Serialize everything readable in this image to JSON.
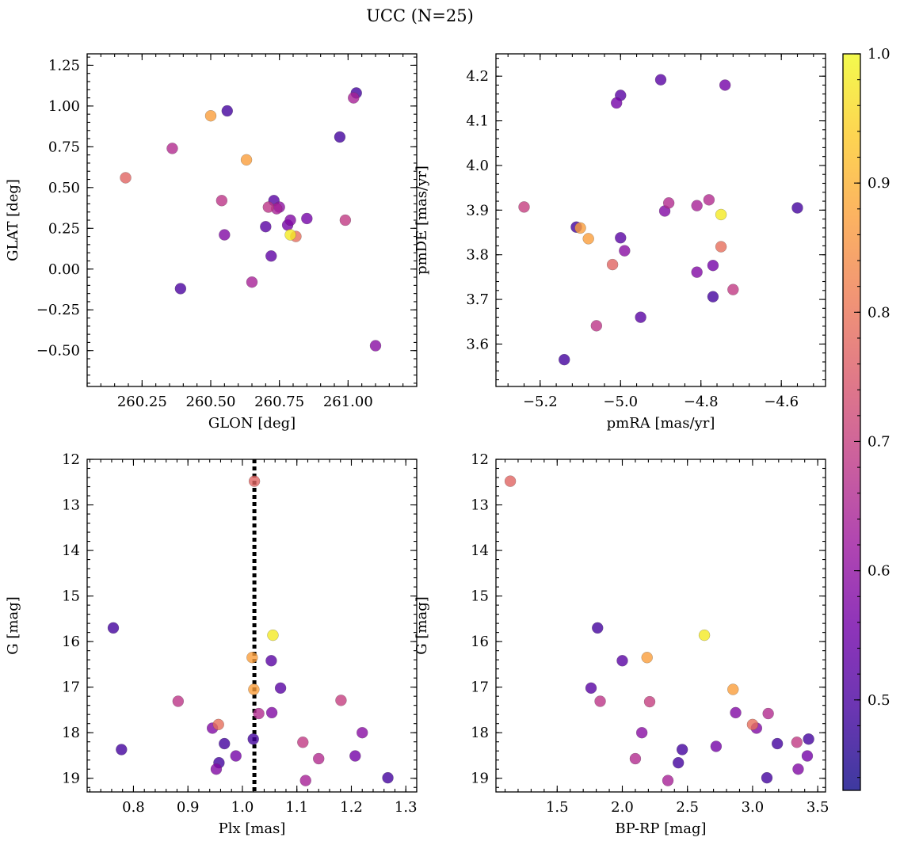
{
  "figure": {
    "title": "UCC (N=25)",
    "colorbar": {
      "range": [
        0.43,
        1.0
      ],
      "ticks": [
        0.5,
        0.6,
        0.7,
        0.8,
        0.9,
        1.0
      ],
      "tick_labels": [
        "0.5",
        "0.6",
        "0.7",
        "0.8",
        "0.9",
        "1.0"
      ],
      "colormap": "plasma",
      "colormap_stops": [
        "#0d0887",
        "#46039f",
        "#7201a8",
        "#9c179e",
        "#bd3786",
        "#d8576b",
        "#ed7953",
        "#fb9f3a",
        "#fdca26",
        "#f0f921"
      ]
    },
    "marker_alpha": 0.8
  },
  "chart_data": [
    {
      "type": "scatter",
      "xlabel": "GLON [deg]",
      "ylabel": "GLAT [deg]",
      "xlim": [
        260.05,
        261.25
      ],
      "ylim": [
        -0.72,
        1.32
      ],
      "xticks": [
        260.25,
        260.5,
        260.75,
        261.0
      ],
      "xtick_labels": [
        "260.25",
        "260.50",
        "260.75",
        "261.00"
      ],
      "yticks": [
        -0.5,
        -0.25,
        0.0,
        0.25,
        0.5,
        0.75,
        1.0,
        1.25
      ],
      "ytick_labels": [
        "−0.50",
        "−0.25",
        "0.00",
        "0.25",
        "0.50",
        "0.75",
        "1.00",
        "1.25"
      ],
      "x": [
        260.19,
        260.36,
        260.39,
        260.5,
        260.54,
        260.55,
        260.56,
        260.63,
        260.65,
        260.7,
        260.71,
        260.72,
        260.73,
        260.75,
        260.78,
        260.79,
        260.79,
        260.81,
        260.85,
        260.97,
        260.99,
        261.02,
        261.03,
        261.1,
        260.74
      ],
      "y": [
        0.56,
        0.74,
        -0.12,
        0.94,
        0.42,
        0.21,
        0.97,
        0.67,
        -0.08,
        0.26,
        0.38,
        0.08,
        0.42,
        0.38,
        0.27,
        0.21,
        0.3,
        0.2,
        0.31,
        0.81,
        0.3,
        1.05,
        1.08,
        -0.47,
        0.37
      ],
      "c": [
        0.77,
        0.66,
        0.5,
        0.87,
        0.68,
        0.58,
        0.49,
        0.87,
        0.64,
        0.52,
        0.68,
        0.53,
        0.52,
        0.6,
        0.56,
        0.98,
        0.58,
        0.79,
        0.56,
        0.49,
        0.69,
        0.64,
        0.49,
        0.59,
        0.64
      ]
    },
    {
      "type": "scatter",
      "xlabel": "pmRA [mas/yr]",
      "ylabel": "pmDE [mas/yr]",
      "xlim": [
        -5.31,
        -4.49
      ],
      "ylim": [
        3.505,
        4.25
      ],
      "xticks": [
        -5.2,
        -5.0,
        -4.8,
        -4.6
      ],
      "xtick_labels": [
        "−5.2",
        "−5.0",
        "−4.8",
        "−4.6"
      ],
      "yticks": [
        3.6,
        3.7,
        3.8,
        3.9,
        4.0,
        4.1,
        4.2
      ],
      "ytick_labels": [
        "3.6",
        "3.7",
        "3.8",
        "3.9",
        "4.0",
        "4.1",
        "4.2"
      ],
      "x": [
        -5.24,
        -5.14,
        -5.11,
        -5.1,
        -5.08,
        -5.06,
        -5.02,
        -5.01,
        -5.0,
        -5.0,
        -4.99,
        -4.95,
        -4.9,
        -4.89,
        -4.88,
        -4.81,
        -4.81,
        -4.78,
        -4.77,
        -4.77,
        -4.75,
        -4.75,
        -4.74,
        -4.72,
        -4.56
      ],
      "y": [
        3.907,
        3.565,
        3.862,
        3.86,
        3.836,
        3.641,
        3.778,
        4.14,
        4.157,
        3.838,
        3.809,
        3.66,
        4.192,
        3.898,
        3.916,
        3.761,
        3.91,
        3.923,
        3.776,
        3.706,
        3.89,
        3.818,
        4.18,
        3.722,
        3.905
      ],
      "c": [
        0.7,
        0.49,
        0.49,
        0.87,
        0.87,
        0.68,
        0.77,
        0.56,
        0.52,
        0.52,
        0.59,
        0.52,
        0.52,
        0.58,
        0.66,
        0.58,
        0.64,
        0.66,
        0.56,
        0.49,
        0.98,
        0.79,
        0.56,
        0.69,
        0.49
      ]
    },
    {
      "type": "scatter",
      "xlabel": "Plx [mas]",
      "ylabel": "G [mag]",
      "xlim": [
        0.715,
        1.32
      ],
      "ylim": [
        19.3,
        12.0
      ],
      "xticks": [
        0.8,
        0.9,
        1.0,
        1.1,
        1.2,
        1.3
      ],
      "xtick_labels": [
        "0.8",
        "0.9",
        "1.0",
        "1.1",
        "1.2",
        "1.3"
      ],
      "yticks": [
        12,
        13,
        14,
        15,
        16,
        17,
        18,
        19
      ],
      "ytick_labels": [
        "12",
        "13",
        "14",
        "15",
        "16",
        "17",
        "18",
        "19"
      ],
      "vline": 1.022,
      "x": [
        0.763,
        0.778,
        0.882,
        0.945,
        0.952,
        0.956,
        0.957,
        0.967,
        0.988,
        1.018,
        1.02,
        1.021,
        1.022,
        1.03,
        1.053,
        1.054,
        1.056,
        1.07,
        1.111,
        1.116,
        1.14,
        1.181,
        1.207,
        1.22,
        1.267
      ],
      "y": [
        15.7,
        18.37,
        17.31,
        17.9,
        18.8,
        17.82,
        18.66,
        18.24,
        18.51,
        16.35,
        18.14,
        17.05,
        12.48,
        17.58,
        16.42,
        17.56,
        15.86,
        17.02,
        18.21,
        19.05,
        18.57,
        17.29,
        18.51,
        18.0,
        18.99
      ],
      "c": [
        0.49,
        0.49,
        0.68,
        0.58,
        0.58,
        0.79,
        0.49,
        0.49,
        0.56,
        0.87,
        0.49,
        0.87,
        0.77,
        0.66,
        0.52,
        0.58,
        0.98,
        0.52,
        0.69,
        0.64,
        0.66,
        0.7,
        0.56,
        0.59,
        0.49
      ]
    },
    {
      "type": "scatter",
      "xlabel": "BP-RP [mag]",
      "ylabel": "G [mag]",
      "xlim": [
        1.03,
        3.56
      ],
      "ylim": [
        19.3,
        12.0
      ],
      "xticks": [
        1.5,
        2.0,
        2.5,
        3.0,
        3.5
      ],
      "xtick_labels": [
        "1.5",
        "2.0",
        "2.5",
        "3.0",
        "3.5"
      ],
      "yticks": [
        12,
        13,
        14,
        15,
        16,
        17,
        18,
        19
      ],
      "ytick_labels": [
        "12",
        "13",
        "14",
        "15",
        "16",
        "17",
        "18",
        "19"
      ],
      "x": [
        1.14,
        1.76,
        1.81,
        1.83,
        2.0,
        2.1,
        2.15,
        2.19,
        2.21,
        2.35,
        2.43,
        2.46,
        2.63,
        2.85,
        2.87,
        3.0,
        3.03,
        3.11,
        3.12,
        3.19,
        3.34,
        3.35,
        3.42,
        3.43,
        2.72
      ],
      "y": [
        12.48,
        17.02,
        15.7,
        17.31,
        16.42,
        18.57,
        18.0,
        16.35,
        17.32,
        19.05,
        18.66,
        18.37,
        15.86,
        17.05,
        17.56,
        17.82,
        17.9,
        18.99,
        17.58,
        18.24,
        18.21,
        18.8,
        18.51,
        18.14,
        18.3
      ],
      "c": [
        0.77,
        0.52,
        0.49,
        0.68,
        0.52,
        0.66,
        0.59,
        0.87,
        0.7,
        0.64,
        0.49,
        0.49,
        0.98,
        0.87,
        0.58,
        0.79,
        0.58,
        0.49,
        0.66,
        0.49,
        0.69,
        0.58,
        0.56,
        0.49,
        0.56
      ]
    }
  ]
}
